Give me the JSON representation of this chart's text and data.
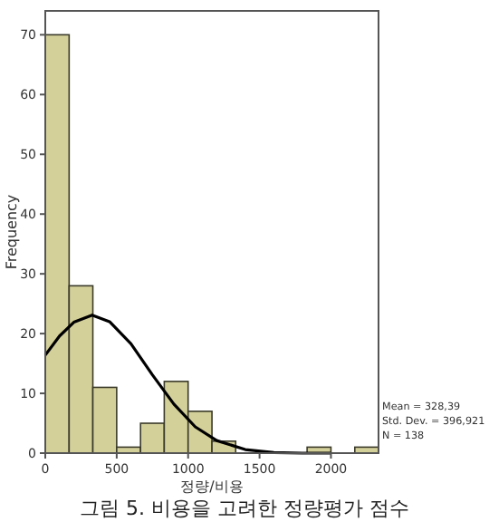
{
  "chart_data": {
    "type": "histogram",
    "xlabel": "정량/비용",
    "ylabel": "Frequency",
    "bins": [
      0,
      167,
      333,
      500,
      667,
      833,
      1000,
      1167,
      1333,
      1500,
      1667,
      1833,
      2000,
      2167,
      2333
    ],
    "values": [
      70,
      28,
      11,
      1,
      5,
      12,
      7,
      2,
      0,
      0,
      0,
      1,
      0,
      1
    ],
    "color": "#d4d09a",
    "series": [
      {
        "type": "line",
        "color": "#000000",
        "x": [
          0,
          100,
          200,
          328,
          450,
          600,
          750,
          900,
          1050,
          1200,
          1400,
          1600,
          1800,
          2000
        ],
        "values": [
          16.4,
          19.6,
          21.9,
          23.1,
          22.0,
          18.3,
          13.1,
          8.2,
          4.4,
          2.1,
          0.6,
          0.1,
          0,
          0
        ]
      }
    ],
    "xlim": [
      0,
      2333
    ],
    "ylim": [
      0,
      74
    ],
    "xticks": [
      0,
      500,
      1000,
      1500,
      2000
    ],
    "yticks": [
      0,
      10,
      20,
      30,
      40,
      50,
      60,
      70
    ],
    "grid": false,
    "annotations": [
      "Mean = 328,39",
      "Std. Dev. = 396,921",
      "N = 138",
      "그림 5. 비용을 고려한 정량평가 점수"
    ]
  }
}
